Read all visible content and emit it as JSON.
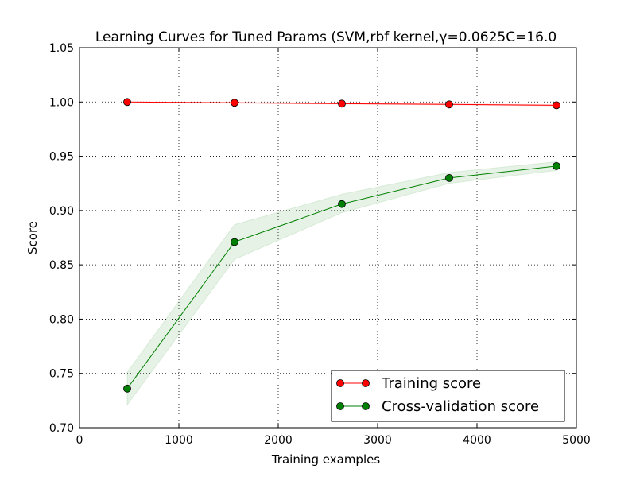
{
  "chart_data": {
    "type": "line",
    "title": "Learning Curves for Tuned Params (SVM,rbf kernel,γ=0.0625C=16.0",
    "xlabel": "Training examples",
    "ylabel": "Score",
    "xlim": [
      0,
      5000
    ],
    "ylim": [
      0.7,
      1.05
    ],
    "xticks": [
      0,
      1000,
      2000,
      3000,
      4000,
      5000
    ],
    "yticks": [
      0.7,
      0.75,
      0.8,
      0.85,
      0.9,
      0.95,
      1.0,
      1.05
    ],
    "xtick_labels": [
      "0",
      "1000",
      "2000",
      "3000",
      "4000",
      "5000"
    ],
    "ytick_labels": [
      "0.70",
      "0.75",
      "0.80",
      "0.85",
      "0.90",
      "0.95",
      "1.00",
      "1.05"
    ],
    "grid": true,
    "legend": "lower-right",
    "x": [
      480,
      1560,
      2640,
      3720,
      4800
    ],
    "series": [
      {
        "name": "Training score",
        "color": "#ff0000",
        "values": [
          1.0,
          0.9993,
          0.9985,
          0.9978,
          0.997
        ],
        "band_low": [
          1.0,
          0.9988,
          0.998,
          0.9973,
          0.9965
        ],
        "band_high": [
          1.0,
          0.9998,
          0.999,
          0.9983,
          0.9975
        ]
      },
      {
        "name": "Cross-validation score",
        "color": "#008000",
        "values": [
          0.736,
          0.871,
          0.906,
          0.93,
          0.941
        ],
        "band_low": [
          0.721,
          0.855,
          0.898,
          0.925,
          0.937
        ],
        "band_high": [
          0.751,
          0.887,
          0.915,
          0.935,
          0.945
        ]
      }
    ]
  }
}
